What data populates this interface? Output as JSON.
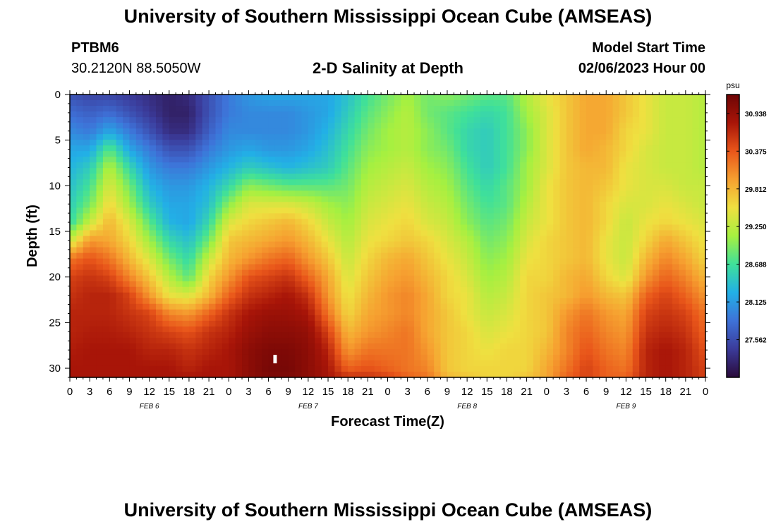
{
  "header": {
    "title": "University of Southern Mississippi Ocean Cube (AMSEAS)",
    "station_id": "PTBM6",
    "station_coords": "30.2120N  88.5050W",
    "plot_subtitle": "2-D Salinity at Depth",
    "model_label": "Model Start Time",
    "model_date": "02/06/2023 Hour 00"
  },
  "footer": {
    "title_repeat": "University of Southern Mississippi Ocean Cube (AMSEAS)"
  },
  "chart_data": {
    "type": "heatmap",
    "title": "2-D Salinity at Depth",
    "xlabel": "Forecast Time(Z)",
    "ylabel": "Depth (ft)",
    "x_ticks": [
      "0",
      "3",
      "6",
      "9",
      "12",
      "15",
      "18",
      "21",
      "0",
      "3",
      "6",
      "9",
      "12",
      "15",
      "18",
      "21",
      "0",
      "3",
      "6",
      "9",
      "12",
      "15",
      "18",
      "21",
      "0",
      "3",
      "6",
      "9",
      "12",
      "15",
      "18",
      "21",
      "0"
    ],
    "x_range_hours": [
      0,
      96
    ],
    "day_labels": [
      {
        "hour": 12,
        "label": "FEB 6"
      },
      {
        "hour": 36,
        "label": "FEB 7"
      },
      {
        "hour": 60,
        "label": "FEB 8"
      },
      {
        "hour": 84,
        "label": "FEB 9"
      }
    ],
    "y_ticks": [
      0,
      5,
      10,
      15,
      20,
      25,
      30
    ],
    "y_range_ft": [
      0,
      31
    ],
    "colorbar": {
      "unit": "psu",
      "levels": [
        "30.938",
        "30.375",
        "29.812",
        "29.250",
        "28.688",
        "28.125",
        "27.562"
      ],
      "min": 27.0,
      "max": 31.22,
      "colors": [
        "#2a0a3a",
        "#3b3b9a",
        "#3e72d8",
        "#22b0e6",
        "#3fe09a",
        "#a6f040",
        "#efe040",
        "#f6a030",
        "#e9561a",
        "#a81508",
        "#6e0505"
      ]
    },
    "depth_profile_ft": [
      0,
      2,
      4,
      6,
      8,
      10,
      12,
      14,
      16,
      18,
      20,
      22,
      24,
      26,
      28,
      30,
      31
    ],
    "series": [
      {
        "hour": 0,
        "values": [
          27.6,
          27.8,
          28.0,
          28.2,
          28.3,
          28.4,
          28.5,
          28.6,
          29.3,
          30.2,
          30.5,
          30.6,
          30.7,
          30.7,
          30.75,
          30.8,
          30.8
        ]
      },
      {
        "hour": 3,
        "values": [
          27.5,
          27.7,
          27.9,
          28.2,
          28.5,
          28.7,
          28.9,
          29.3,
          30.0,
          30.4,
          30.6,
          30.7,
          30.7,
          30.75,
          30.8,
          30.8,
          30.8
        ]
      },
      {
        "hour": 6,
        "values": [
          27.5,
          27.8,
          28.2,
          28.8,
          29.2,
          29.4,
          29.6,
          29.8,
          29.9,
          30.2,
          30.5,
          30.7,
          30.7,
          30.75,
          30.8,
          30.8,
          30.8
        ]
      },
      {
        "hour": 9,
        "values": [
          27.4,
          27.6,
          27.9,
          28.2,
          28.6,
          28.9,
          29.1,
          29.4,
          29.6,
          29.8,
          30.1,
          30.5,
          30.6,
          30.7,
          30.8,
          30.8,
          30.8
        ]
      },
      {
        "hour": 12,
        "values": [
          27.3,
          27.4,
          27.6,
          27.9,
          28.1,
          28.3,
          28.5,
          28.8,
          29.1,
          29.4,
          29.7,
          30.0,
          30.5,
          30.6,
          30.7,
          30.8,
          30.8
        ]
      },
      {
        "hour": 15,
        "values": [
          27.2,
          27.2,
          27.3,
          27.6,
          27.9,
          28.1,
          28.2,
          28.3,
          28.6,
          28.9,
          29.2,
          29.5,
          30.1,
          30.5,
          30.7,
          30.8,
          30.8
        ]
      },
      {
        "hour": 18,
        "values": [
          27.3,
          27.2,
          27.3,
          27.6,
          27.9,
          28.1,
          28.2,
          28.2,
          28.4,
          28.6,
          28.8,
          29.4,
          30.0,
          30.4,
          30.6,
          30.7,
          30.8
        ]
      },
      {
        "hour": 21,
        "values": [
          27.6,
          27.6,
          27.7,
          27.9,
          28.1,
          28.3,
          28.4,
          28.6,
          28.9,
          29.3,
          29.6,
          29.8,
          30.3,
          30.6,
          30.7,
          30.8,
          30.8
        ]
      },
      {
        "hour": 24,
        "values": [
          27.9,
          27.9,
          28.0,
          28.1,
          28.3,
          28.6,
          29.0,
          29.4,
          29.7,
          29.8,
          30.0,
          30.3,
          30.6,
          30.7,
          30.8,
          30.8,
          30.8
        ]
      },
      {
        "hour": 27,
        "values": [
          28.1,
          28.0,
          28.0,
          28.2,
          28.5,
          29.0,
          29.4,
          29.6,
          29.8,
          30.0,
          30.4,
          30.6,
          30.8,
          30.9,
          31.0,
          31.0,
          31.0
        ]
      },
      {
        "hour": 30,
        "values": [
          28.2,
          28.0,
          28.0,
          28.1,
          28.4,
          28.9,
          29.4,
          29.7,
          29.9,
          30.2,
          30.5,
          30.7,
          30.9,
          31.0,
          31.1,
          31.15,
          31.1
        ]
      },
      {
        "hour": 33,
        "values": [
          28.2,
          28.0,
          28.0,
          28.1,
          28.3,
          28.8,
          29.4,
          29.8,
          30.0,
          30.3,
          30.6,
          30.8,
          30.9,
          31.0,
          31.1,
          31.15,
          31.1
        ]
      },
      {
        "hour": 36,
        "values": [
          28.2,
          28.1,
          28.1,
          28.2,
          28.4,
          28.8,
          29.3,
          29.6,
          29.8,
          30.0,
          30.3,
          30.6,
          30.8,
          30.95,
          31.0,
          31.0,
          31.0
        ]
      },
      {
        "hour": 39,
        "values": [
          28.2,
          28.2,
          28.3,
          28.4,
          28.5,
          28.8,
          29.1,
          29.3,
          29.5,
          29.7,
          29.9,
          30.0,
          30.2,
          30.5,
          30.7,
          30.8,
          30.8
        ]
      },
      {
        "hour": 42,
        "values": [
          28.4,
          28.5,
          28.6,
          28.7,
          28.8,
          28.9,
          29.0,
          29.1,
          29.2,
          29.3,
          29.4,
          29.5,
          29.6,
          29.8,
          30.0,
          30.3,
          30.6
        ]
      },
      {
        "hour": 45,
        "values": [
          28.7,
          28.8,
          28.9,
          29.0,
          29.1,
          29.2,
          29.3,
          29.4,
          29.5,
          29.6,
          29.7,
          29.8,
          29.9,
          30.0,
          30.2,
          30.4,
          30.6
        ]
      },
      {
        "hour": 48,
        "values": [
          28.9,
          29.0,
          29.1,
          29.1,
          29.2,
          29.3,
          29.4,
          29.5,
          29.6,
          29.8,
          29.9,
          30.0,
          30.0,
          30.1,
          30.2,
          30.3,
          30.5
        ]
      },
      {
        "hour": 51,
        "values": [
          29.1,
          29.2,
          29.2,
          29.2,
          29.3,
          29.4,
          29.5,
          29.6,
          29.7,
          29.9,
          30.0,
          30.1,
          30.1,
          30.2,
          30.2,
          30.2,
          30.3
        ]
      },
      {
        "hour": 54,
        "values": [
          28.9,
          28.9,
          29.0,
          29.0,
          29.1,
          29.2,
          29.3,
          29.4,
          29.6,
          29.7,
          29.8,
          29.9,
          29.9,
          29.9,
          30.0,
          30.1,
          30.2
        ]
      },
      {
        "hour": 57,
        "values": [
          29.0,
          28.8,
          28.8,
          28.9,
          29.0,
          29.1,
          29.2,
          29.3,
          29.4,
          29.5,
          29.6,
          29.6,
          29.7,
          29.7,
          29.7,
          29.7,
          29.8
        ]
      },
      {
        "hour": 60,
        "values": [
          28.9,
          28.7,
          28.6,
          28.6,
          28.7,
          28.8,
          28.9,
          29.0,
          29.2,
          29.3,
          29.4,
          29.5,
          29.5,
          29.6,
          29.6,
          29.6,
          29.7
        ]
      },
      {
        "hour": 63,
        "values": [
          28.8,
          28.6,
          28.5,
          28.5,
          28.5,
          28.6,
          28.7,
          28.8,
          28.9,
          29.0,
          29.1,
          29.2,
          29.3,
          29.4,
          29.5,
          29.6,
          29.6
        ]
      },
      {
        "hour": 66,
        "values": [
          28.8,
          28.7,
          28.7,
          28.7,
          28.7,
          28.8,
          28.8,
          28.9,
          29.0,
          29.1,
          29.2,
          29.3,
          29.4,
          29.5,
          29.6,
          29.6,
          29.6
        ]
      },
      {
        "hour": 69,
        "values": [
          29.2,
          29.1,
          29.0,
          29.0,
          29.1,
          29.1,
          29.2,
          29.3,
          29.4,
          29.5,
          29.6,
          29.6,
          29.6,
          29.6,
          29.6,
          29.6,
          29.7
        ]
      },
      {
        "hour": 72,
        "values": [
          29.5,
          29.4,
          29.4,
          29.4,
          29.4,
          29.5,
          29.5,
          29.5,
          29.6,
          29.6,
          29.6,
          29.7,
          29.7,
          29.7,
          29.8,
          29.9,
          29.9
        ]
      },
      {
        "hour": 75,
        "values": [
          29.7,
          29.7,
          29.7,
          29.7,
          29.7,
          29.7,
          29.7,
          29.7,
          29.7,
          29.7,
          29.8,
          29.8,
          30.0,
          30.1,
          30.1,
          30.2,
          30.3
        ]
      },
      {
        "hour": 78,
        "values": [
          29.9,
          29.9,
          29.9,
          29.9,
          29.8,
          29.8,
          29.8,
          29.8,
          29.8,
          29.8,
          29.9,
          30.0,
          30.2,
          30.3,
          30.4,
          30.5,
          30.5
        ]
      },
      {
        "hour": 81,
        "values": [
          29.9,
          29.9,
          29.9,
          29.8,
          29.8,
          29.7,
          29.6,
          29.6,
          29.5,
          29.5,
          29.6,
          29.8,
          30.0,
          30.1,
          30.2,
          30.3,
          30.3
        ]
      },
      {
        "hour": 84,
        "values": [
          29.7,
          29.7,
          29.6,
          29.6,
          29.5,
          29.5,
          29.4,
          29.3,
          29.3,
          29.3,
          29.4,
          29.7,
          29.9,
          30.0,
          30.1,
          30.2,
          30.3
        ]
      },
      {
        "hour": 87,
        "values": [
          29.5,
          29.5,
          29.5,
          29.4,
          29.4,
          29.4,
          29.4,
          29.5,
          29.6,
          29.8,
          30.0,
          30.3,
          30.5,
          30.6,
          30.7,
          30.7,
          30.7
        ]
      },
      {
        "hour": 90,
        "values": [
          29.3,
          29.3,
          29.3,
          29.3,
          29.3,
          29.4,
          29.5,
          29.6,
          29.9,
          30.1,
          30.3,
          30.5,
          30.6,
          30.7,
          30.8,
          30.8,
          30.8
        ]
      },
      {
        "hour": 93,
        "values": [
          29.3,
          29.3,
          29.3,
          29.3,
          29.3,
          29.3,
          29.4,
          29.5,
          29.7,
          29.9,
          30.1,
          30.3,
          30.5,
          30.6,
          30.7,
          30.7,
          30.7
        ]
      },
      {
        "hour": 96,
        "values": [
          29.2,
          29.2,
          29.2,
          29.2,
          29.2,
          29.3,
          29.3,
          29.4,
          29.5,
          29.6,
          29.8,
          30.0,
          30.2,
          30.3,
          30.4,
          30.5,
          30.5
        ]
      }
    ],
    "marker": {
      "hour": 31,
      "depth_ft": 29.0
    }
  }
}
